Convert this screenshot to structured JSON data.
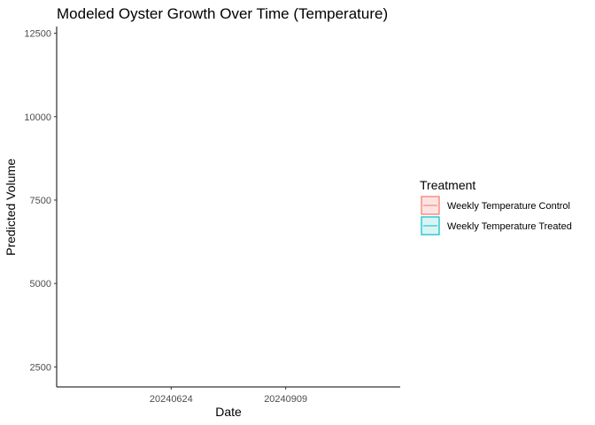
{
  "chart_data": {
    "type": "line",
    "title": "Modeled Oyster Growth Over Time (Temperature)",
    "xlabel": "Date",
    "ylabel": "Predicted Volume",
    "x_categories": [
      "20240624",
      "20240909"
    ],
    "y_ticks": [
      2500,
      5000,
      7500,
      10000,
      12500
    ],
    "y_tick_labels": [
      "2500",
      "5000",
      "7500",
      "10000",
      "12500"
    ],
    "ylim": [
      1900,
      12700
    ],
    "grid": false,
    "legend": {
      "title": "Treatment",
      "position": "right",
      "entries": [
        {
          "label": "Weekly Temperature Control",
          "color": "#F8766D",
          "fill": "#FDE4E2"
        },
        {
          "label": "Weekly Temperature Treated",
          "color": "#00BFC4",
          "fill": "#D9F4F5"
        }
      ]
    },
    "series": [
      {
        "name": "Weekly Temperature Control",
        "values": []
      },
      {
        "name": "Weekly Temperature Treated",
        "values": []
      }
    ]
  }
}
